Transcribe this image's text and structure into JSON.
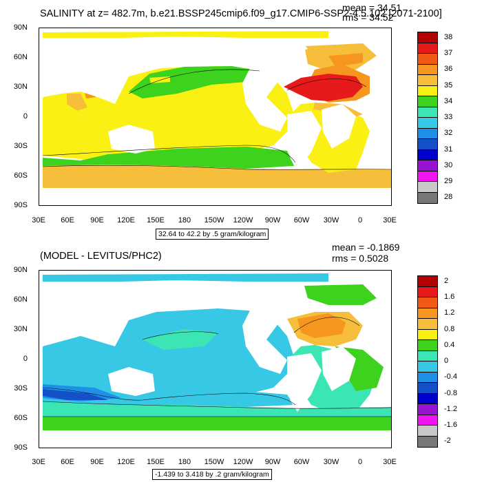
{
  "panel1": {
    "title": "SALINITY at z= 482.7m, b.e21.BSSP245cmip6.f09_g17.CMIP6-SSP2-4.5.102 [2071-2100]",
    "mean": "mean = 34.51",
    "rms": "rms = 34.52",
    "range": "32.64 to 42.2 by .5 gram/kilogram",
    "colorbar": {
      "labels": [
        "38",
        "37",
        "36",
        "35",
        "34",
        "33",
        "32",
        "31",
        "30",
        "29",
        "28"
      ],
      "colors": [
        "#b30000",
        "#e6191b",
        "#f05a14",
        "#f7961e",
        "#f7be3c",
        "#faf014",
        "#3cd21e",
        "#3ce6b4",
        "#37c8e6",
        "#1e90e6",
        "#1450c8",
        "#0000cd",
        "#9614d2",
        "#f014f0",
        "#c8c8c8",
        "#787878"
      ]
    }
  },
  "panel2": {
    "title": "(MODEL - LEVITUS/PHC2)",
    "mean": "mean = -0.1869",
    "rms": "rms = 0.5028",
    "range": "-1.439 to 3.418 by .2 gram/kilogram",
    "colorbar": {
      "labels": [
        "2",
        "1.6",
        "1.2",
        "0.8",
        "0.4",
        "0",
        "-0.4",
        "-0.8",
        "-1.2",
        "-1.6",
        "-2"
      ],
      "colors": [
        "#b30000",
        "#e6191b",
        "#f05a14",
        "#f7961e",
        "#f7be3c",
        "#faf014",
        "#3cd21e",
        "#3ce6b4",
        "#37c8e6",
        "#1e90e6",
        "#1450c8",
        "#0000cd",
        "#9614d2",
        "#f014f0",
        "#c8c8c8",
        "#787878"
      ]
    }
  },
  "axes": {
    "lat_labels": [
      "90N",
      "60N",
      "30N",
      "0",
      "30S",
      "60S",
      "90S"
    ],
    "lon_labels": [
      "30E",
      "60E",
      "90E",
      "120E",
      "150E",
      "180",
      "150W",
      "120W",
      "90W",
      "60W",
      "30W",
      "0",
      "30E"
    ]
  }
}
